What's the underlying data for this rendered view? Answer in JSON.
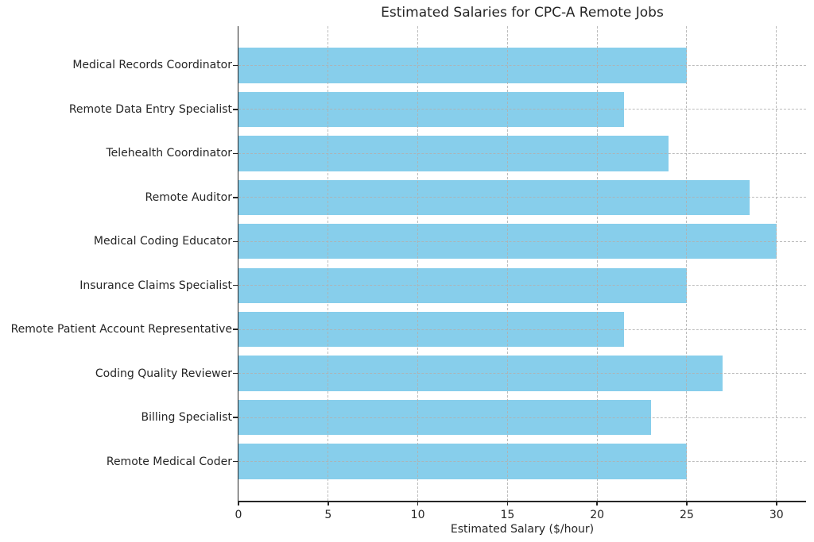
{
  "chart_data": {
    "type": "bar",
    "orientation": "horizontal",
    "title": "Estimated Salaries for CPC-A Remote Jobs",
    "xlabel": "Estimated Salary ($/hour)",
    "ylabel": "",
    "categories": [
      "Medical Records Coordinator",
      "Remote Data Entry Specialist",
      "Telehealth Coordinator",
      "Remote Auditor",
      "Medical Coding Educator",
      "Insurance Claims Specialist",
      "Remote Patient Account Representative",
      "Coding Quality Reviewer",
      "Billing Specialist",
      "Remote Medical Coder"
    ],
    "values": [
      25,
      21.5,
      24,
      28.5,
      30,
      25,
      21.5,
      27,
      23,
      25
    ],
    "xticks": [
      0,
      5,
      10,
      15,
      20,
      25,
      30
    ],
    "xlim": [
      0,
      31.65
    ],
    "ylim": [
      -0.89,
      9.89
    ],
    "bar_height_fraction": 0.8,
    "bar_color": "#87CEEB",
    "grid": {
      "visible": true,
      "style": "dashed",
      "color": "#b0b0b0",
      "drawn_above_bars": true
    },
    "axis_color": "#262626",
    "text_color": "#262626",
    "background_color": "#ffffff",
    "legend": null
  }
}
